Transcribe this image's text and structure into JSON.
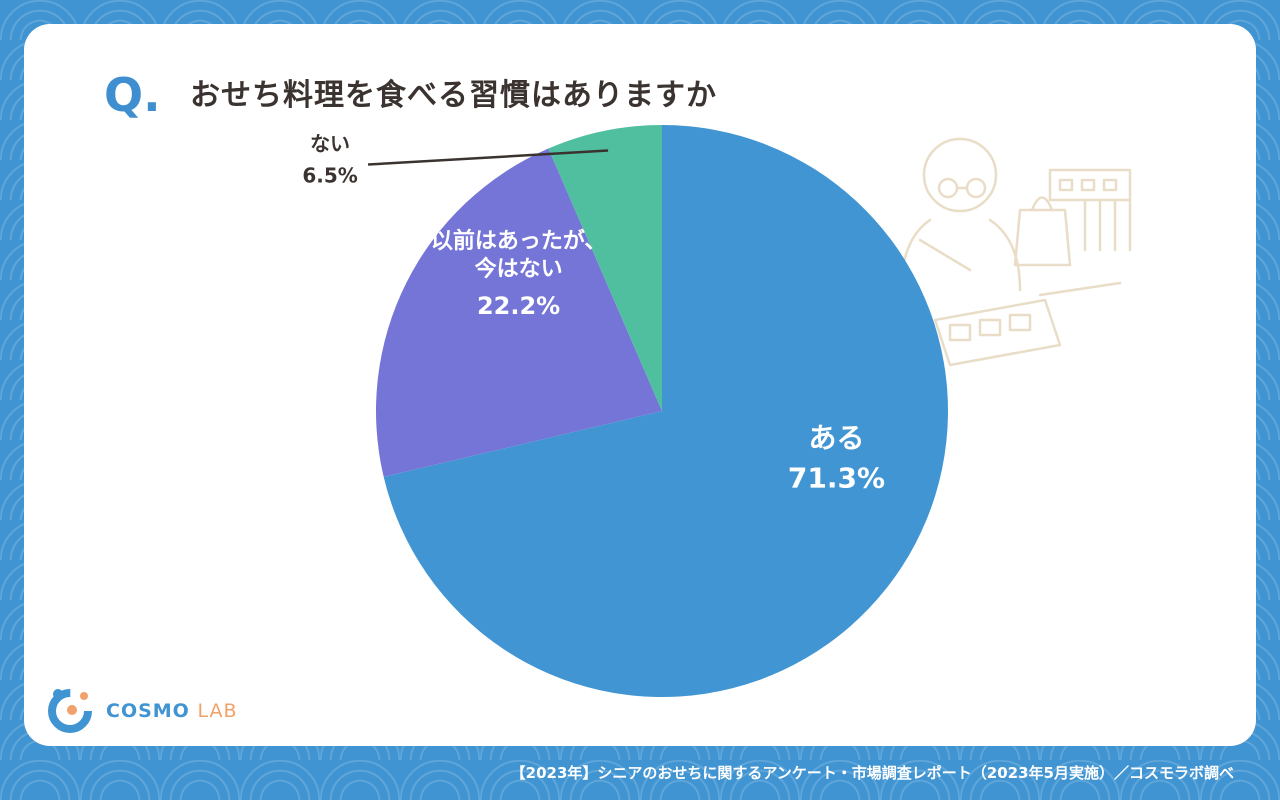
{
  "question": {
    "mark": "Q.",
    "text": "おせち料理を食べる習慣はありますか"
  },
  "chart_data": {
    "type": "pie",
    "title": "おせち料理を食べる習慣はありますか",
    "slices": [
      {
        "label": "ある",
        "value": 71.3,
        "display": "71.3%",
        "color": "#4195d3"
      },
      {
        "label_lines": [
          "以前はあったが、",
          "今はない"
        ],
        "label": "以前はあったが、今はない",
        "value": 22.2,
        "display": "22.2%",
        "color": "#7475d6"
      },
      {
        "label": "ない",
        "value": 6.5,
        "display": "6.5%",
        "color": "#4fbf9f"
      }
    ]
  },
  "logo": {
    "part1": "COSMO",
    "part2": "LAB"
  },
  "footer": "【2023年】シニアのおせちに関するアンケート・市場調査レポート（2023年5月実施）／コスモラボ調べ",
  "colors": {
    "background": "#4094d2",
    "accent": "#3f8fd0",
    "text": "#3b332f"
  }
}
